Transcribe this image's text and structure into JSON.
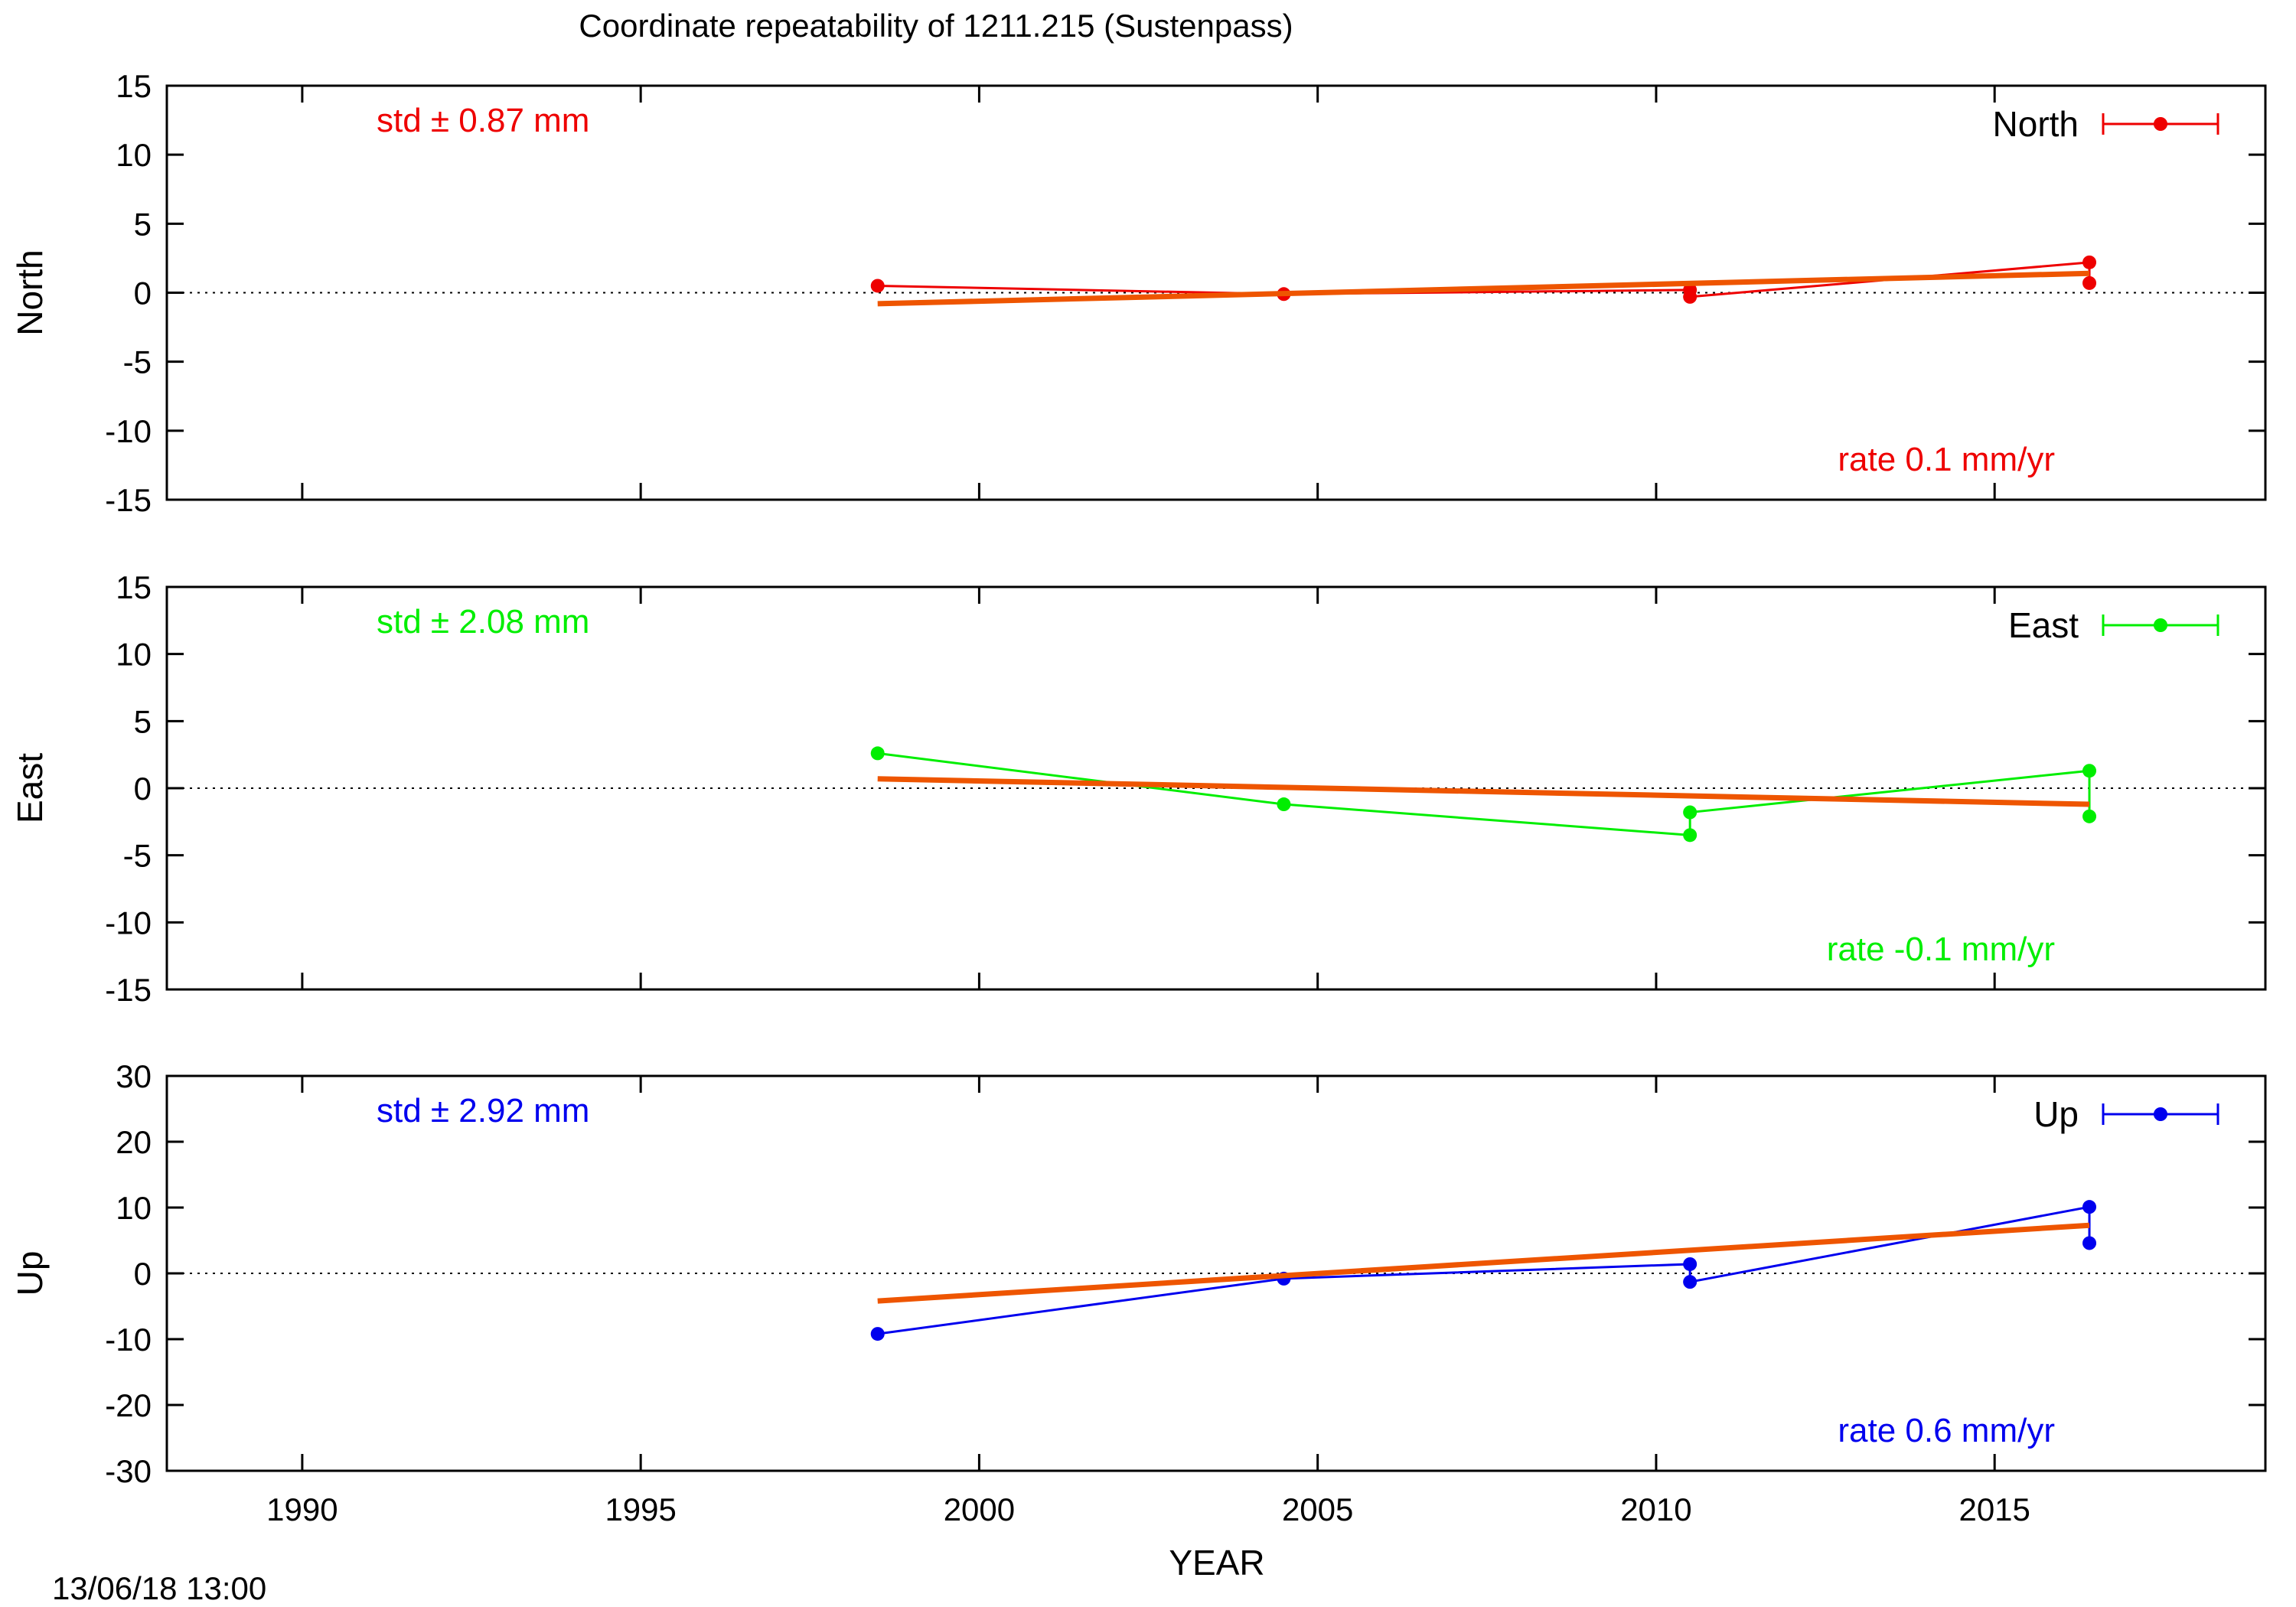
{
  "title": "Coordinate repeatability of 1211.215        (Sustenpass)",
  "timestamp": "13/06/18 13:00",
  "chart_data": {
    "type": "line",
    "xlabel": "YEAR",
    "xlim": [
      1988,
      2019
    ],
    "xticks": [
      1990,
      1995,
      2000,
      2005,
      2010,
      2015
    ],
    "fit_color": "#ee5500",
    "panels": [
      {
        "name": "North",
        "ylabel": "North",
        "legend": "North",
        "color": "#ee0000",
        "ylim": [
          -15,
          15
        ],
        "yticks": [
          15,
          10,
          5,
          0,
          -5,
          -10,
          -15
        ],
        "std_text": "std ± 0.87 mm",
        "rate_text": "rate  0.1 mm/yr",
        "x": [
          1998.5,
          2004.5,
          2010.5,
          2010.5,
          2016.4,
          2016.4
        ],
        "y": [
          0.5,
          -0.1,
          0.2,
          -0.3,
          2.2,
          0.7
        ],
        "fit": {
          "x": [
            1998.5,
            2016.4
          ],
          "y": [
            -0.8,
            1.4
          ]
        }
      },
      {
        "name": "East",
        "ylabel": "East",
        "legend": "East",
        "color": "#00ee00",
        "ylim": [
          -15,
          15
        ],
        "yticks": [
          15,
          10,
          5,
          0,
          -5,
          -10,
          -15
        ],
        "std_text": "std ± 2.08 mm",
        "rate_text": "rate -0.1 mm/yr",
        "x": [
          1998.5,
          2004.5,
          2010.5,
          2010.5,
          2016.4,
          2016.4
        ],
        "y": [
          2.6,
          -1.2,
          -3.5,
          -1.8,
          1.3,
          -2.1
        ],
        "fit": {
          "x": [
            1998.5,
            2016.4
          ],
          "y": [
            0.7,
            -1.2
          ]
        }
      },
      {
        "name": "Up",
        "ylabel": "Up",
        "legend": "Up",
        "color": "#0000ee",
        "ylim": [
          -30,
          30
        ],
        "yticks": [
          30,
          20,
          10,
          0,
          -10,
          -20,
          -30
        ],
        "std_text": "std ± 2.92 mm",
        "rate_text": "rate  0.6 mm/yr",
        "x": [
          1998.5,
          2004.5,
          2010.5,
          2010.5,
          2016.4,
          2016.4
        ],
        "y": [
          -9.2,
          -0.8,
          1.4,
          -1.3,
          10.1,
          4.6
        ],
        "fit": {
          "x": [
            1998.5,
            2016.4
          ],
          "y": [
            -4.2,
            7.3
          ]
        }
      }
    ]
  }
}
